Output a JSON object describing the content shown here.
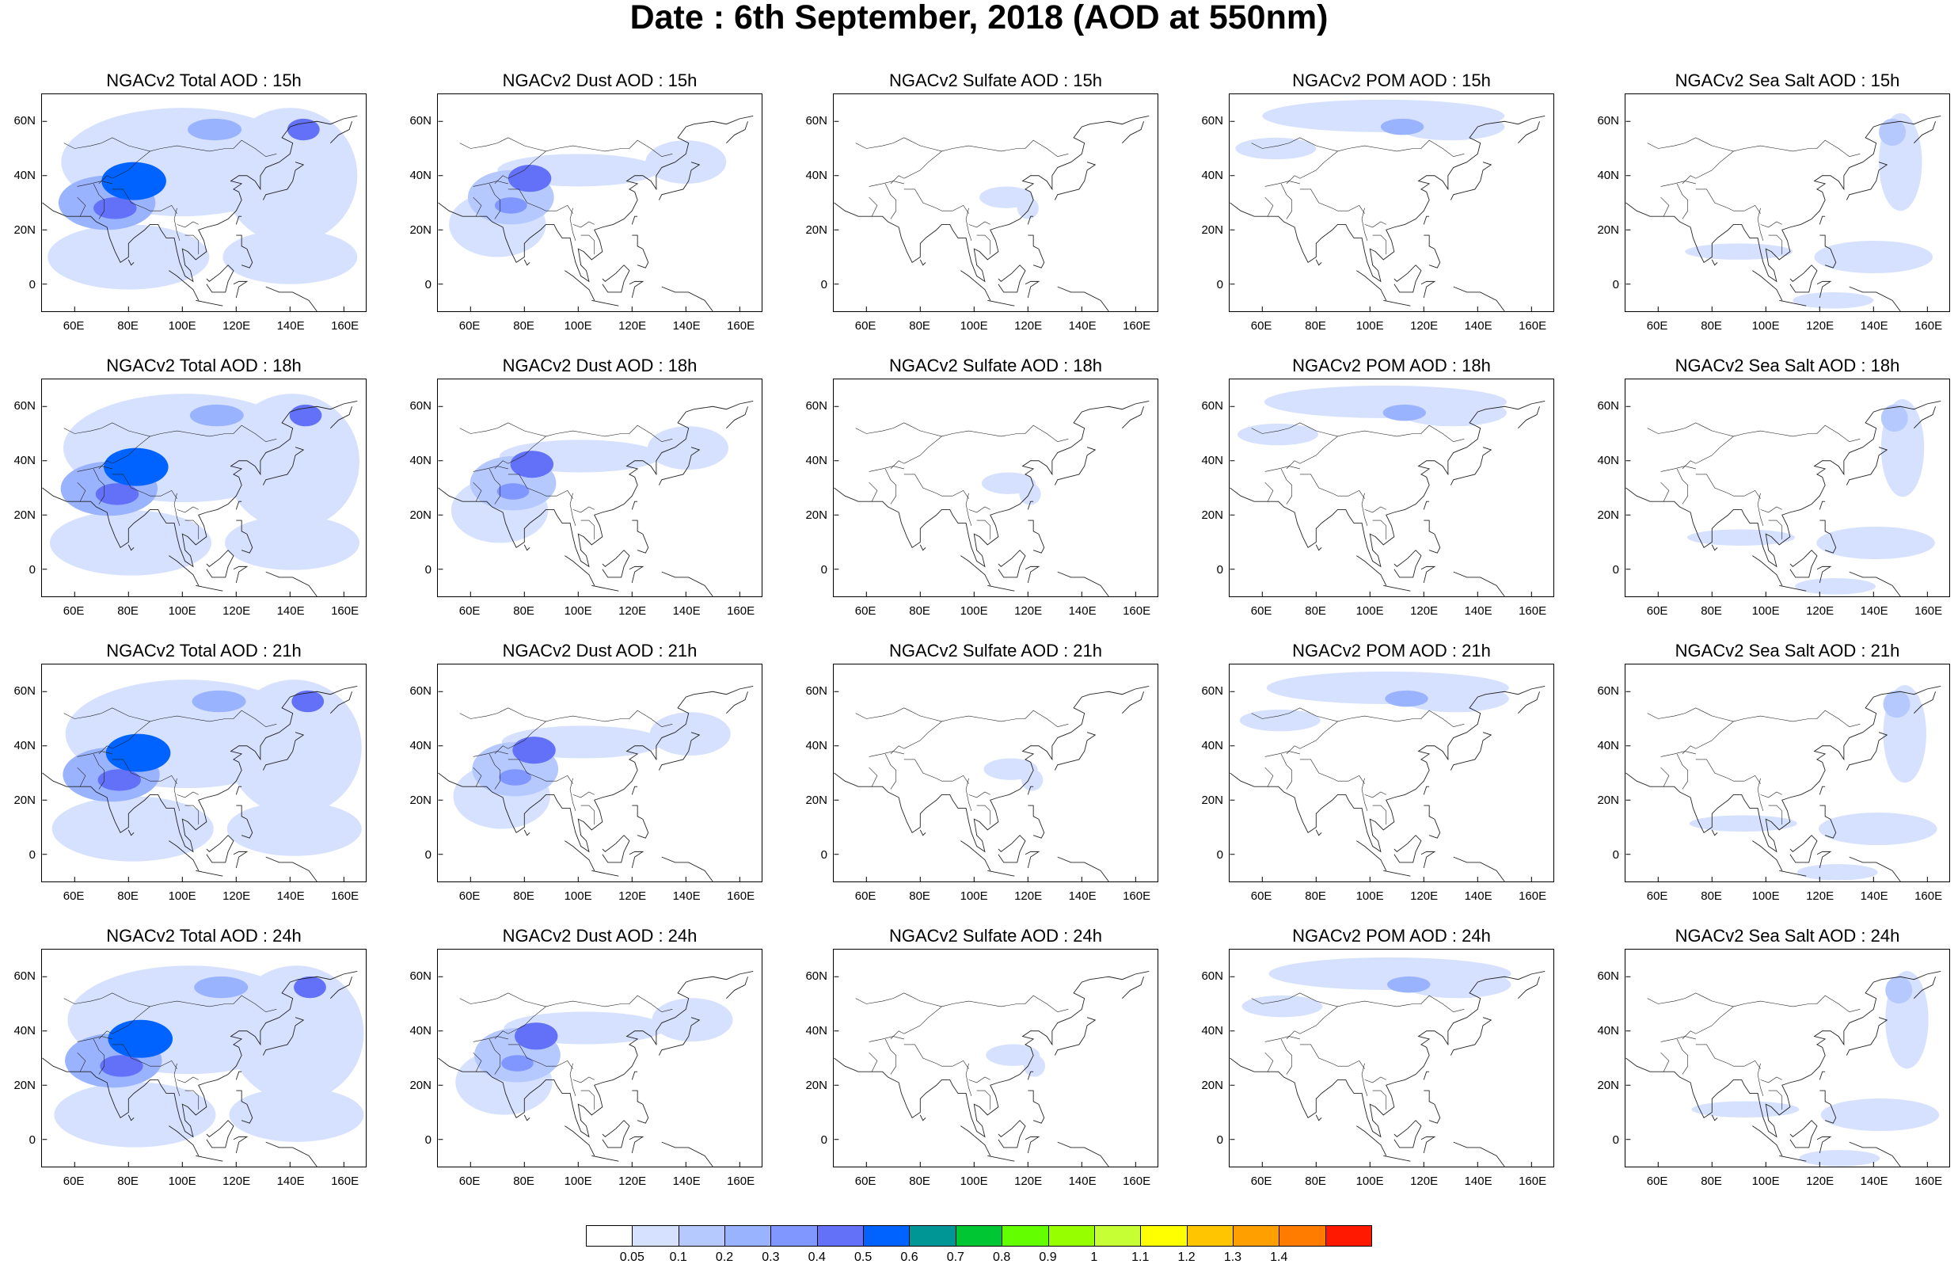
{
  "title": "Date : 6th September, 2018 (AOD at 550nm)",
  "lat_ticks": [
    "60N",
    "40N",
    "20N",
    "0"
  ],
  "lat_values": [
    60,
    40,
    20,
    0
  ],
  "lon_ticks": [
    "60E",
    "80E",
    "100E",
    "120E",
    "140E",
    "160E"
  ],
  "lon_values": [
    60,
    80,
    100,
    120,
    140,
    160
  ],
  "map_extent": {
    "lon": [
      48,
      168
    ],
    "lat": [
      -10,
      70
    ]
  },
  "panels": [
    {
      "title": "NGACv2 Total AOD : 15h",
      "species": "total",
      "hour": 15
    },
    {
      "title": "NGACv2 Dust AOD : 15h",
      "species": "dust",
      "hour": 15
    },
    {
      "title": "NGACv2 Sulfate AOD : 15h",
      "species": "sulfate",
      "hour": 15
    },
    {
      "title": "NGACv2 POM AOD : 15h",
      "species": "pom",
      "hour": 15
    },
    {
      "title": "NGACv2 Sea Salt AOD : 15h",
      "species": "seasalt",
      "hour": 15
    },
    {
      "title": "NGACv2 Total AOD : 18h",
      "species": "total",
      "hour": 18
    },
    {
      "title": "NGACv2 Dust AOD : 18h",
      "species": "dust",
      "hour": 18
    },
    {
      "title": "NGACv2 Sulfate AOD : 18h",
      "species": "sulfate",
      "hour": 18
    },
    {
      "title": "NGACv2 POM AOD : 18h",
      "species": "pom",
      "hour": 18
    },
    {
      "title": "NGACv2 Sea Salt AOD : 18h",
      "species": "seasalt",
      "hour": 18
    },
    {
      "title": "NGACv2 Total AOD : 21h",
      "species": "total",
      "hour": 21
    },
    {
      "title": "NGACv2 Dust AOD : 21h",
      "species": "dust",
      "hour": 21
    },
    {
      "title": "NGACv2 Sulfate AOD : 21h",
      "species": "sulfate",
      "hour": 21
    },
    {
      "title": "NGACv2 POM AOD : 21h",
      "species": "pom",
      "hour": 21
    },
    {
      "title": "NGACv2 Sea Salt AOD : 21h",
      "species": "seasalt",
      "hour": 21
    },
    {
      "title": "NGACv2 Total AOD : 24h",
      "species": "total",
      "hour": 24
    },
    {
      "title": "NGACv2 Dust AOD : 24h",
      "species": "dust",
      "hour": 24
    },
    {
      "title": "NGACv2 Sulfate AOD : 24h",
      "species": "sulfate",
      "hour": 24
    },
    {
      "title": "NGACv2 POM AOD : 24h",
      "species": "pom",
      "hour": 24
    },
    {
      "title": "NGACv2 Sea Salt  AOD : 24h",
      "species": "seasalt",
      "hour": 24
    }
  ],
  "plumes": {
    "total": [
      {
        "lon": 82,
        "lat": 38,
        "rx": 12,
        "ry": 7,
        "level": 6
      },
      {
        "lon": 75,
        "lat": 28,
        "rx": 8,
        "ry": 4,
        "level": 5
      },
      {
        "lon": 72,
        "lat": 30,
        "rx": 18,
        "ry": 10,
        "level": 3
      },
      {
        "lon": 145,
        "lat": 57,
        "rx": 6,
        "ry": 4,
        "level": 5
      },
      {
        "lon": 112,
        "lat": 57,
        "rx": 10,
        "ry": 4,
        "level": 3
      },
      {
        "lon": 100,
        "lat": 45,
        "rx": 45,
        "ry": 20,
        "level": 1
      },
      {
        "lon": 140,
        "lat": 40,
        "rx": 25,
        "ry": 25,
        "level": 1
      },
      {
        "lon": 80,
        "lat": 10,
        "rx": 30,
        "ry": 12,
        "level": 1
      },
      {
        "lon": 140,
        "lat": 10,
        "rx": 25,
        "ry": 10,
        "level": 1
      }
    ],
    "dust": [
      {
        "lon": 82,
        "lat": 39,
        "rx": 8,
        "ry": 5,
        "level": 5
      },
      {
        "lon": 75,
        "lat": 29,
        "rx": 6,
        "ry": 3,
        "level": 4
      },
      {
        "lon": 75,
        "lat": 32,
        "rx": 16,
        "ry": 10,
        "level": 2
      },
      {
        "lon": 100,
        "lat": 42,
        "rx": 30,
        "ry": 6,
        "level": 1
      },
      {
        "lon": 70,
        "lat": 22,
        "rx": 18,
        "ry": 12,
        "level": 1
      },
      {
        "lon": 140,
        "lat": 45,
        "rx": 15,
        "ry": 8,
        "level": 1
      }
    ],
    "sulfate": [
      {
        "lon": 112,
        "lat": 32,
        "rx": 10,
        "ry": 4,
        "level": 1
      },
      {
        "lon": 120,
        "lat": 28,
        "rx": 4,
        "ry": 4,
        "level": 1
      }
    ],
    "pom": [
      {
        "lon": 112,
        "lat": 58,
        "rx": 8,
        "ry": 3,
        "level": 3
      },
      {
        "lon": 105,
        "lat": 62,
        "rx": 45,
        "ry": 6,
        "level": 1
      },
      {
        "lon": 130,
        "lat": 58,
        "rx": 20,
        "ry": 5,
        "level": 1
      },
      {
        "lon": 65,
        "lat": 50,
        "rx": 15,
        "ry": 4,
        "level": 1
      }
    ],
    "seasalt": [
      {
        "lon": 147,
        "lat": 56,
        "rx": 5,
        "ry": 5,
        "level": 2
      },
      {
        "lon": 150,
        "lat": 45,
        "rx": 8,
        "ry": 18,
        "level": 1
      },
      {
        "lon": 140,
        "lat": 10,
        "rx": 22,
        "ry": 6,
        "level": 1
      },
      {
        "lon": 90,
        "lat": 12,
        "rx": 20,
        "ry": 3,
        "level": 1
      },
      {
        "lon": 125,
        "lat": -6,
        "rx": 15,
        "ry": 3,
        "level": 1
      }
    ]
  },
  "colorbar": {
    "colors": [
      "#ffffff",
      "#d6e1ff",
      "#b5c9ff",
      "#9ab3ff",
      "#7f97ff",
      "#6370f8",
      "#0063ff",
      "#009696",
      "#00c633",
      "#63ff00",
      "#96ff00",
      "#c6ff33",
      "#ffff00",
      "#ffc600",
      "#ffa000",
      "#ff7c00",
      "#ff1900"
    ],
    "labels": [
      "0.05",
      "0.1",
      "0.2",
      "0.3",
      "0.4",
      "0.5",
      "0.6",
      "0.7",
      "0.8",
      "0.9",
      "1",
      "1.1",
      "1.2",
      "1.3",
      "1.4"
    ]
  }
}
